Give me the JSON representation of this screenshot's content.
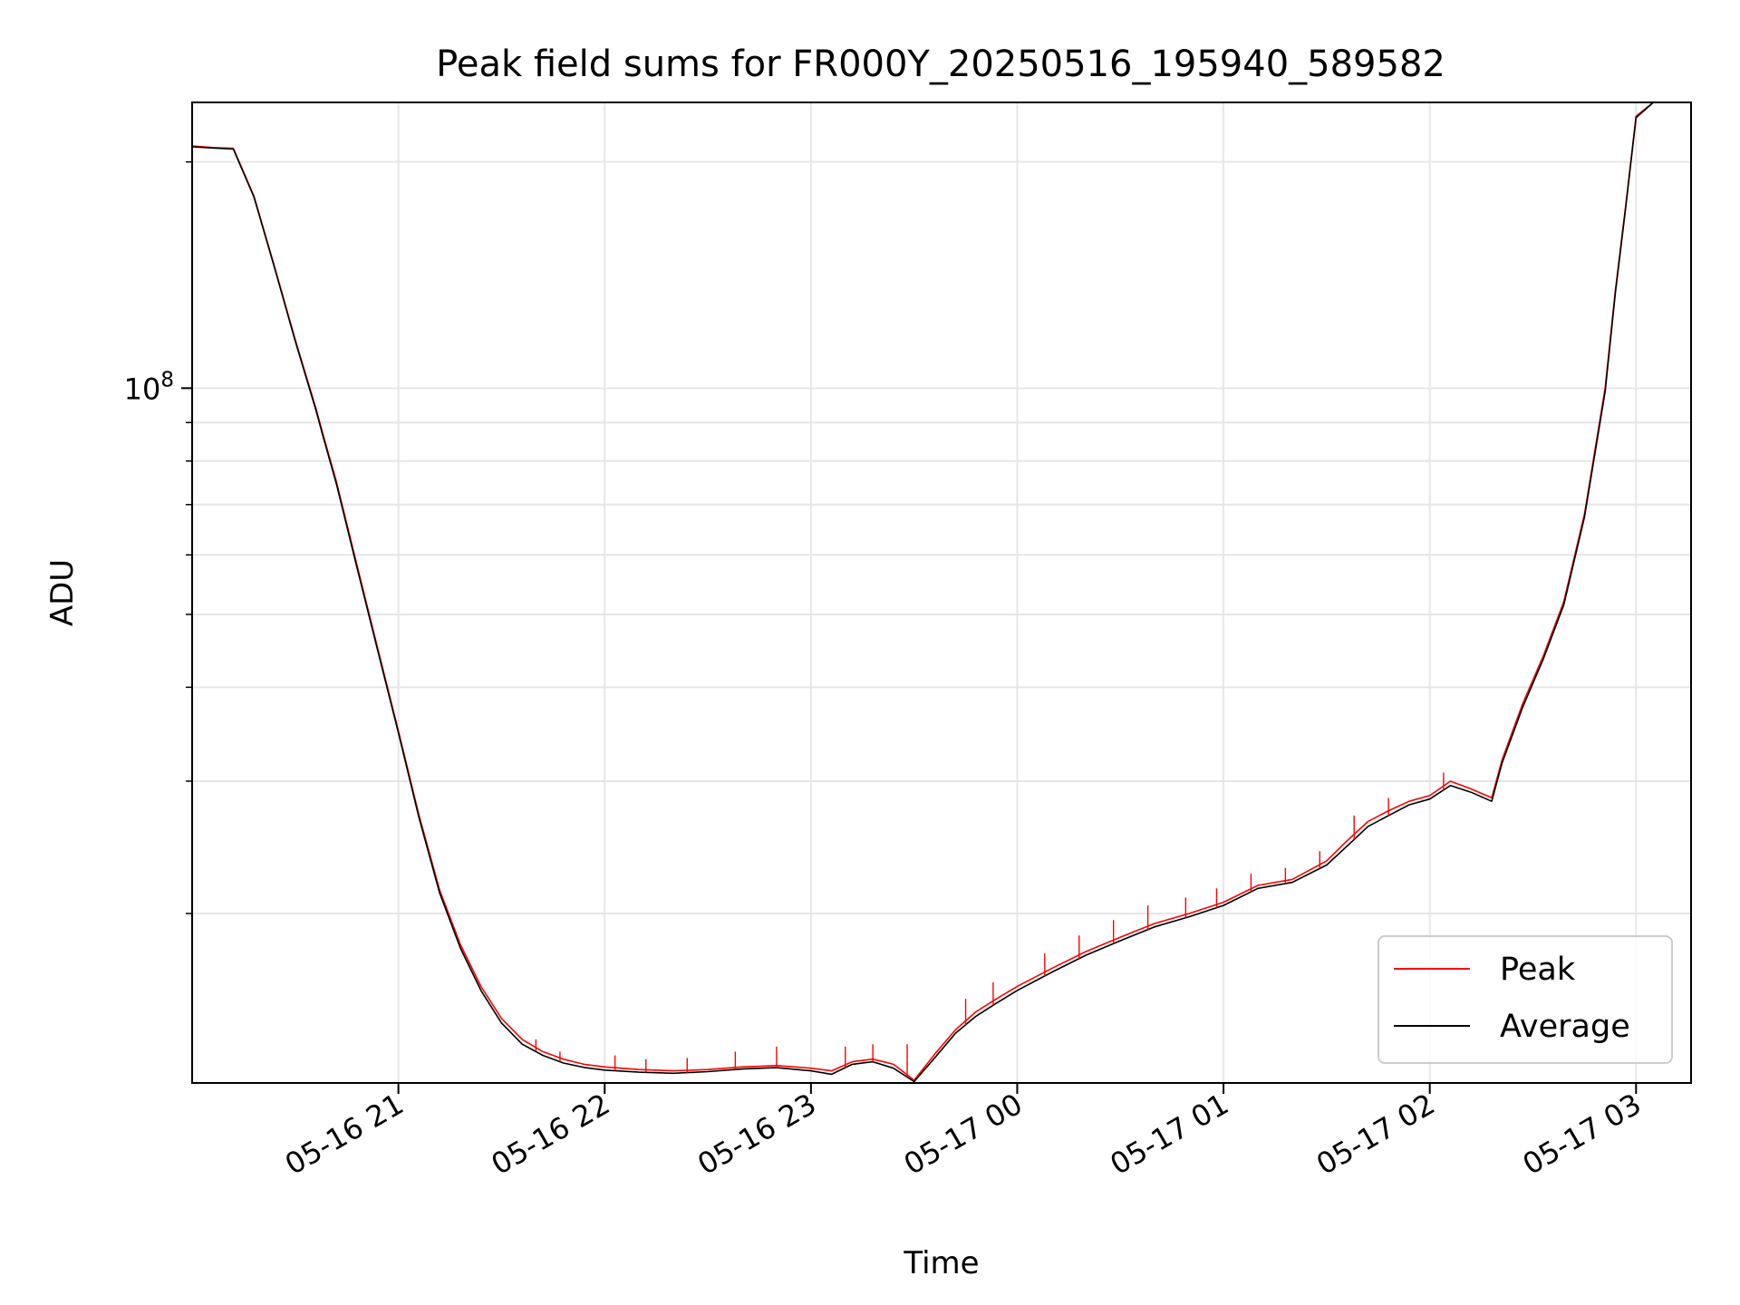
{
  "chart_data": {
    "type": "line",
    "title": "Peak field sums for FR000Y_20250516_195940_589582",
    "xlabel": "Time",
    "ylabel": "ADU",
    "xaxis_type": "datetime",
    "yscale": "log",
    "xlim": [
      "2025-05-16T20:00:00",
      "2025-05-17T03:16:00"
    ],
    "ylim": [
      11900000,
      240000000
    ],
    "x_ticks": [
      {
        "t": "2025-05-16T21:00:00",
        "label": "05-16 21"
      },
      {
        "t": "2025-05-16T22:00:00",
        "label": "05-16 22"
      },
      {
        "t": "2025-05-16T23:00:00",
        "label": "05-16 23"
      },
      {
        "t": "2025-05-17T00:00:00",
        "label": "05-17 00"
      },
      {
        "t": "2025-05-17T01:00:00",
        "label": "05-17 01"
      },
      {
        "t": "2025-05-17T02:00:00",
        "label": "05-17 02"
      },
      {
        "t": "2025-05-17T03:00:00",
        "label": "05-17 03"
      }
    ],
    "y_major_tick": {
      "value": 100000000,
      "label_base": "10",
      "label_exp": "8"
    },
    "y_minor_ticks": [
      20000000,
      30000000,
      40000000,
      50000000,
      60000000,
      70000000,
      80000000,
      90000000,
      200000000
    ],
    "grid": true,
    "legend_position": "lower-right",
    "series": [
      {
        "name": "Peak",
        "color": "#ff0000",
        "points": [
          [
            "2025-05-16T20:00:00",
            210000000
          ],
          [
            "2025-05-16T20:06:00",
            209000000
          ],
          [
            "2025-05-16T20:12:00",
            208500000
          ],
          [
            "2025-05-16T20:18:00",
            180000000
          ],
          [
            "2025-05-16T20:24:00",
            145000000
          ],
          [
            "2025-05-16T20:30:00",
            116000000
          ],
          [
            "2025-05-16T20:36:00",
            94000000
          ],
          [
            "2025-05-16T20:38:00",
            87000000
          ],
          [
            "2025-05-16T20:42:00",
            75000000
          ],
          [
            "2025-05-16T20:48:00",
            58000000
          ],
          [
            "2025-05-16T20:54:00",
            45000000
          ],
          [
            "2025-05-16T21:00:00",
            35000000
          ],
          [
            "2025-05-16T21:06:00",
            27000000
          ],
          [
            "2025-05-16T21:12:00",
            21500000
          ],
          [
            "2025-05-16T21:18:00",
            18200000
          ],
          [
            "2025-05-16T21:24:00",
            16000000
          ],
          [
            "2025-05-16T21:30:00",
            14500000
          ],
          [
            "2025-05-16T21:36:00",
            13600000
          ],
          [
            "2025-05-16T21:42:00",
            13100000
          ],
          [
            "2025-05-16T21:48:00",
            12800000
          ],
          [
            "2025-05-16T21:54:00",
            12600000
          ],
          [
            "2025-05-16T22:00:00",
            12500000
          ],
          [
            "2025-05-16T22:10:00",
            12400000
          ],
          [
            "2025-05-16T22:20:00",
            12350000
          ],
          [
            "2025-05-16T22:30:00",
            12400000
          ],
          [
            "2025-05-16T22:40:00",
            12500000
          ],
          [
            "2025-05-16T22:50:00",
            12550000
          ],
          [
            "2025-05-16T23:00:00",
            12450000
          ],
          [
            "2025-05-16T23:06:00",
            12350000
          ],
          [
            "2025-05-16T23:12:00",
            12700000
          ],
          [
            "2025-05-16T23:18:00",
            12800000
          ],
          [
            "2025-05-16T23:24:00",
            12600000
          ],
          [
            "2025-05-16T23:30:00",
            12000000
          ],
          [
            "2025-05-16T23:36:00",
            13000000
          ],
          [
            "2025-05-16T23:42:00",
            14000000
          ],
          [
            "2025-05-16T23:48:00",
            14800000
          ],
          [
            "2025-05-16T23:54:00",
            15400000
          ],
          [
            "2025-05-17T00:00:00",
            16000000
          ],
          [
            "2025-05-17T00:10:00",
            16900000
          ],
          [
            "2025-05-17T00:20:00",
            17800000
          ],
          [
            "2025-05-17T00:30:00",
            18600000
          ],
          [
            "2025-05-17T00:40:00",
            19400000
          ],
          [
            "2025-05-17T00:50:00",
            20000000
          ],
          [
            "2025-05-17T01:00:00",
            20700000
          ],
          [
            "2025-05-17T01:10:00",
            21800000
          ],
          [
            "2025-05-17T01:20:00",
            22200000
          ],
          [
            "2025-05-17T01:30:00",
            23500000
          ],
          [
            "2025-05-17T01:36:00",
            25000000
          ],
          [
            "2025-05-17T01:42:00",
            26500000
          ],
          [
            "2025-05-17T01:48:00",
            27400000
          ],
          [
            "2025-05-17T01:54:00",
            28200000
          ],
          [
            "2025-05-17T02:00:00",
            28700000
          ],
          [
            "2025-05-17T02:06:00",
            30000000
          ],
          [
            "2025-05-17T02:12:00",
            29300000
          ],
          [
            "2025-05-17T02:18:00",
            28500000
          ],
          [
            "2025-05-17T02:21:00",
            32000000
          ],
          [
            "2025-05-17T02:27:00",
            38000000
          ],
          [
            "2025-05-17T02:33:00",
            44000000
          ],
          [
            "2025-05-17T02:39:00",
            52000000
          ],
          [
            "2025-05-17T02:45:00",
            68000000
          ],
          [
            "2025-05-17T02:51:00",
            100000000
          ],
          [
            "2025-05-17T02:54:00",
            135000000
          ],
          [
            "2025-05-17T02:57:00",
            175000000
          ],
          [
            "2025-05-17T03:00:00",
            230000000
          ],
          [
            "2025-05-17T03:05:00",
            240000000
          ]
        ]
      },
      {
        "name": "Average",
        "color": "#000000",
        "points": [
          [
            "2025-05-16T20:00:00",
            209500000
          ],
          [
            "2025-05-16T20:06:00",
            208700000
          ],
          [
            "2025-05-16T20:12:00",
            208000000
          ],
          [
            "2025-05-16T20:18:00",
            179500000
          ],
          [
            "2025-05-16T20:24:00",
            144500000
          ],
          [
            "2025-05-16T20:30:00",
            115500000
          ],
          [
            "2025-05-16T20:36:00",
            93500000
          ],
          [
            "2025-05-16T20:38:00",
            86500000
          ],
          [
            "2025-05-16T20:42:00",
            74500000
          ],
          [
            "2025-05-16T20:48:00",
            57600000
          ],
          [
            "2025-05-16T20:54:00",
            44700000
          ],
          [
            "2025-05-16T21:00:00",
            34800000
          ],
          [
            "2025-05-16T21:06:00",
            26800000
          ],
          [
            "2025-05-16T21:12:00",
            21300000
          ],
          [
            "2025-05-16T21:18:00",
            18000000
          ],
          [
            "2025-05-16T21:24:00",
            15800000
          ],
          [
            "2025-05-16T21:30:00",
            14300000
          ],
          [
            "2025-05-16T21:36:00",
            13400000
          ],
          [
            "2025-05-16T21:42:00",
            12950000
          ],
          [
            "2025-05-16T21:48:00",
            12650000
          ],
          [
            "2025-05-16T21:54:00",
            12480000
          ],
          [
            "2025-05-16T22:00:00",
            12380000
          ],
          [
            "2025-05-16T22:10:00",
            12300000
          ],
          [
            "2025-05-16T22:20:00",
            12260000
          ],
          [
            "2025-05-16T22:30:00",
            12320000
          ],
          [
            "2025-05-16T22:40:00",
            12420000
          ],
          [
            "2025-05-16T22:50:00",
            12470000
          ],
          [
            "2025-05-16T23:00:00",
            12350000
          ],
          [
            "2025-05-16T23:06:00",
            12220000
          ],
          [
            "2025-05-16T23:12:00",
            12600000
          ],
          [
            "2025-05-16T23:18:00",
            12700000
          ],
          [
            "2025-05-16T23:24:00",
            12450000
          ],
          [
            "2025-05-16T23:30:00",
            11950000
          ],
          [
            "2025-05-16T23:36:00",
            12850000
          ],
          [
            "2025-05-16T23:42:00",
            13850000
          ],
          [
            "2025-05-16T23:48:00",
            14600000
          ],
          [
            "2025-05-16T23:54:00",
            15200000
          ],
          [
            "2025-05-17T00:00:00",
            15800000
          ],
          [
            "2025-05-17T00:10:00",
            16700000
          ],
          [
            "2025-05-17T00:20:00",
            17600000
          ],
          [
            "2025-05-17T00:30:00",
            18400000
          ],
          [
            "2025-05-17T00:40:00",
            19200000
          ],
          [
            "2025-05-17T00:50:00",
            19800000
          ],
          [
            "2025-05-17T01:00:00",
            20500000
          ],
          [
            "2025-05-17T01:10:00",
            21600000
          ],
          [
            "2025-05-17T01:20:00",
            22000000
          ],
          [
            "2025-05-17T01:30:00",
            23200000
          ],
          [
            "2025-05-17T01:36:00",
            24600000
          ],
          [
            "2025-05-17T01:42:00",
            26100000
          ],
          [
            "2025-05-17T01:48:00",
            27000000
          ],
          [
            "2025-05-17T01:54:00",
            27900000
          ],
          [
            "2025-05-17T02:00:00",
            28400000
          ],
          [
            "2025-05-17T02:06:00",
            29600000
          ],
          [
            "2025-05-17T02:12:00",
            29000000
          ],
          [
            "2025-05-17T02:18:00",
            28200000
          ],
          [
            "2025-05-17T02:21:00",
            31700000
          ],
          [
            "2025-05-17T02:27:00",
            37600000
          ],
          [
            "2025-05-17T02:33:00",
            43600000
          ],
          [
            "2025-05-17T02:39:00",
            51500000
          ],
          [
            "2025-05-17T02:45:00",
            67400000
          ],
          [
            "2025-05-17T02:51:00",
            99000000
          ],
          [
            "2025-05-17T02:54:00",
            134000000
          ],
          [
            "2025-05-17T02:57:00",
            174000000
          ],
          [
            "2025-05-17T03:00:00",
            229000000
          ],
          [
            "2025-05-17T03:05:00",
            240000000
          ]
        ]
      }
    ],
    "peak_spikes": [
      [
        "2025-05-16T21:40:00",
        13600000
      ],
      [
        "2025-05-16T21:47:00",
        13100000
      ],
      [
        "2025-05-16T22:03:00",
        12950000
      ],
      [
        "2025-05-16T22:12:00",
        12800000
      ],
      [
        "2025-05-16T22:24:00",
        12850000
      ],
      [
        "2025-05-16T22:38:00",
        13100000
      ],
      [
        "2025-05-16T22:50:00",
        13300000
      ],
      [
        "2025-05-16T23:10:00",
        13300000
      ],
      [
        "2025-05-16T23:18:00",
        13400000
      ],
      [
        "2025-05-16T23:28:00",
        13400000
      ],
      [
        "2025-05-16T23:45:00",
        15400000
      ],
      [
        "2025-05-16T23:53:00",
        16200000
      ],
      [
        "2025-05-17T00:08:00",
        17700000
      ],
      [
        "2025-05-17T00:18:00",
        18700000
      ],
      [
        "2025-05-17T00:28:00",
        19600000
      ],
      [
        "2025-05-17T00:38:00",
        20500000
      ],
      [
        "2025-05-17T00:49:00",
        21000000
      ],
      [
        "2025-05-17T00:58:00",
        21600000
      ],
      [
        "2025-05-17T01:08:00",
        22600000
      ],
      [
        "2025-05-17T01:18:00",
        23000000
      ],
      [
        "2025-05-17T01:28:00",
        24200000
      ],
      [
        "2025-05-17T01:38:00",
        27000000
      ],
      [
        "2025-05-17T01:48:00",
        28500000
      ],
      [
        "2025-05-17T02:04:00",
        30800000
      ]
    ]
  }
}
